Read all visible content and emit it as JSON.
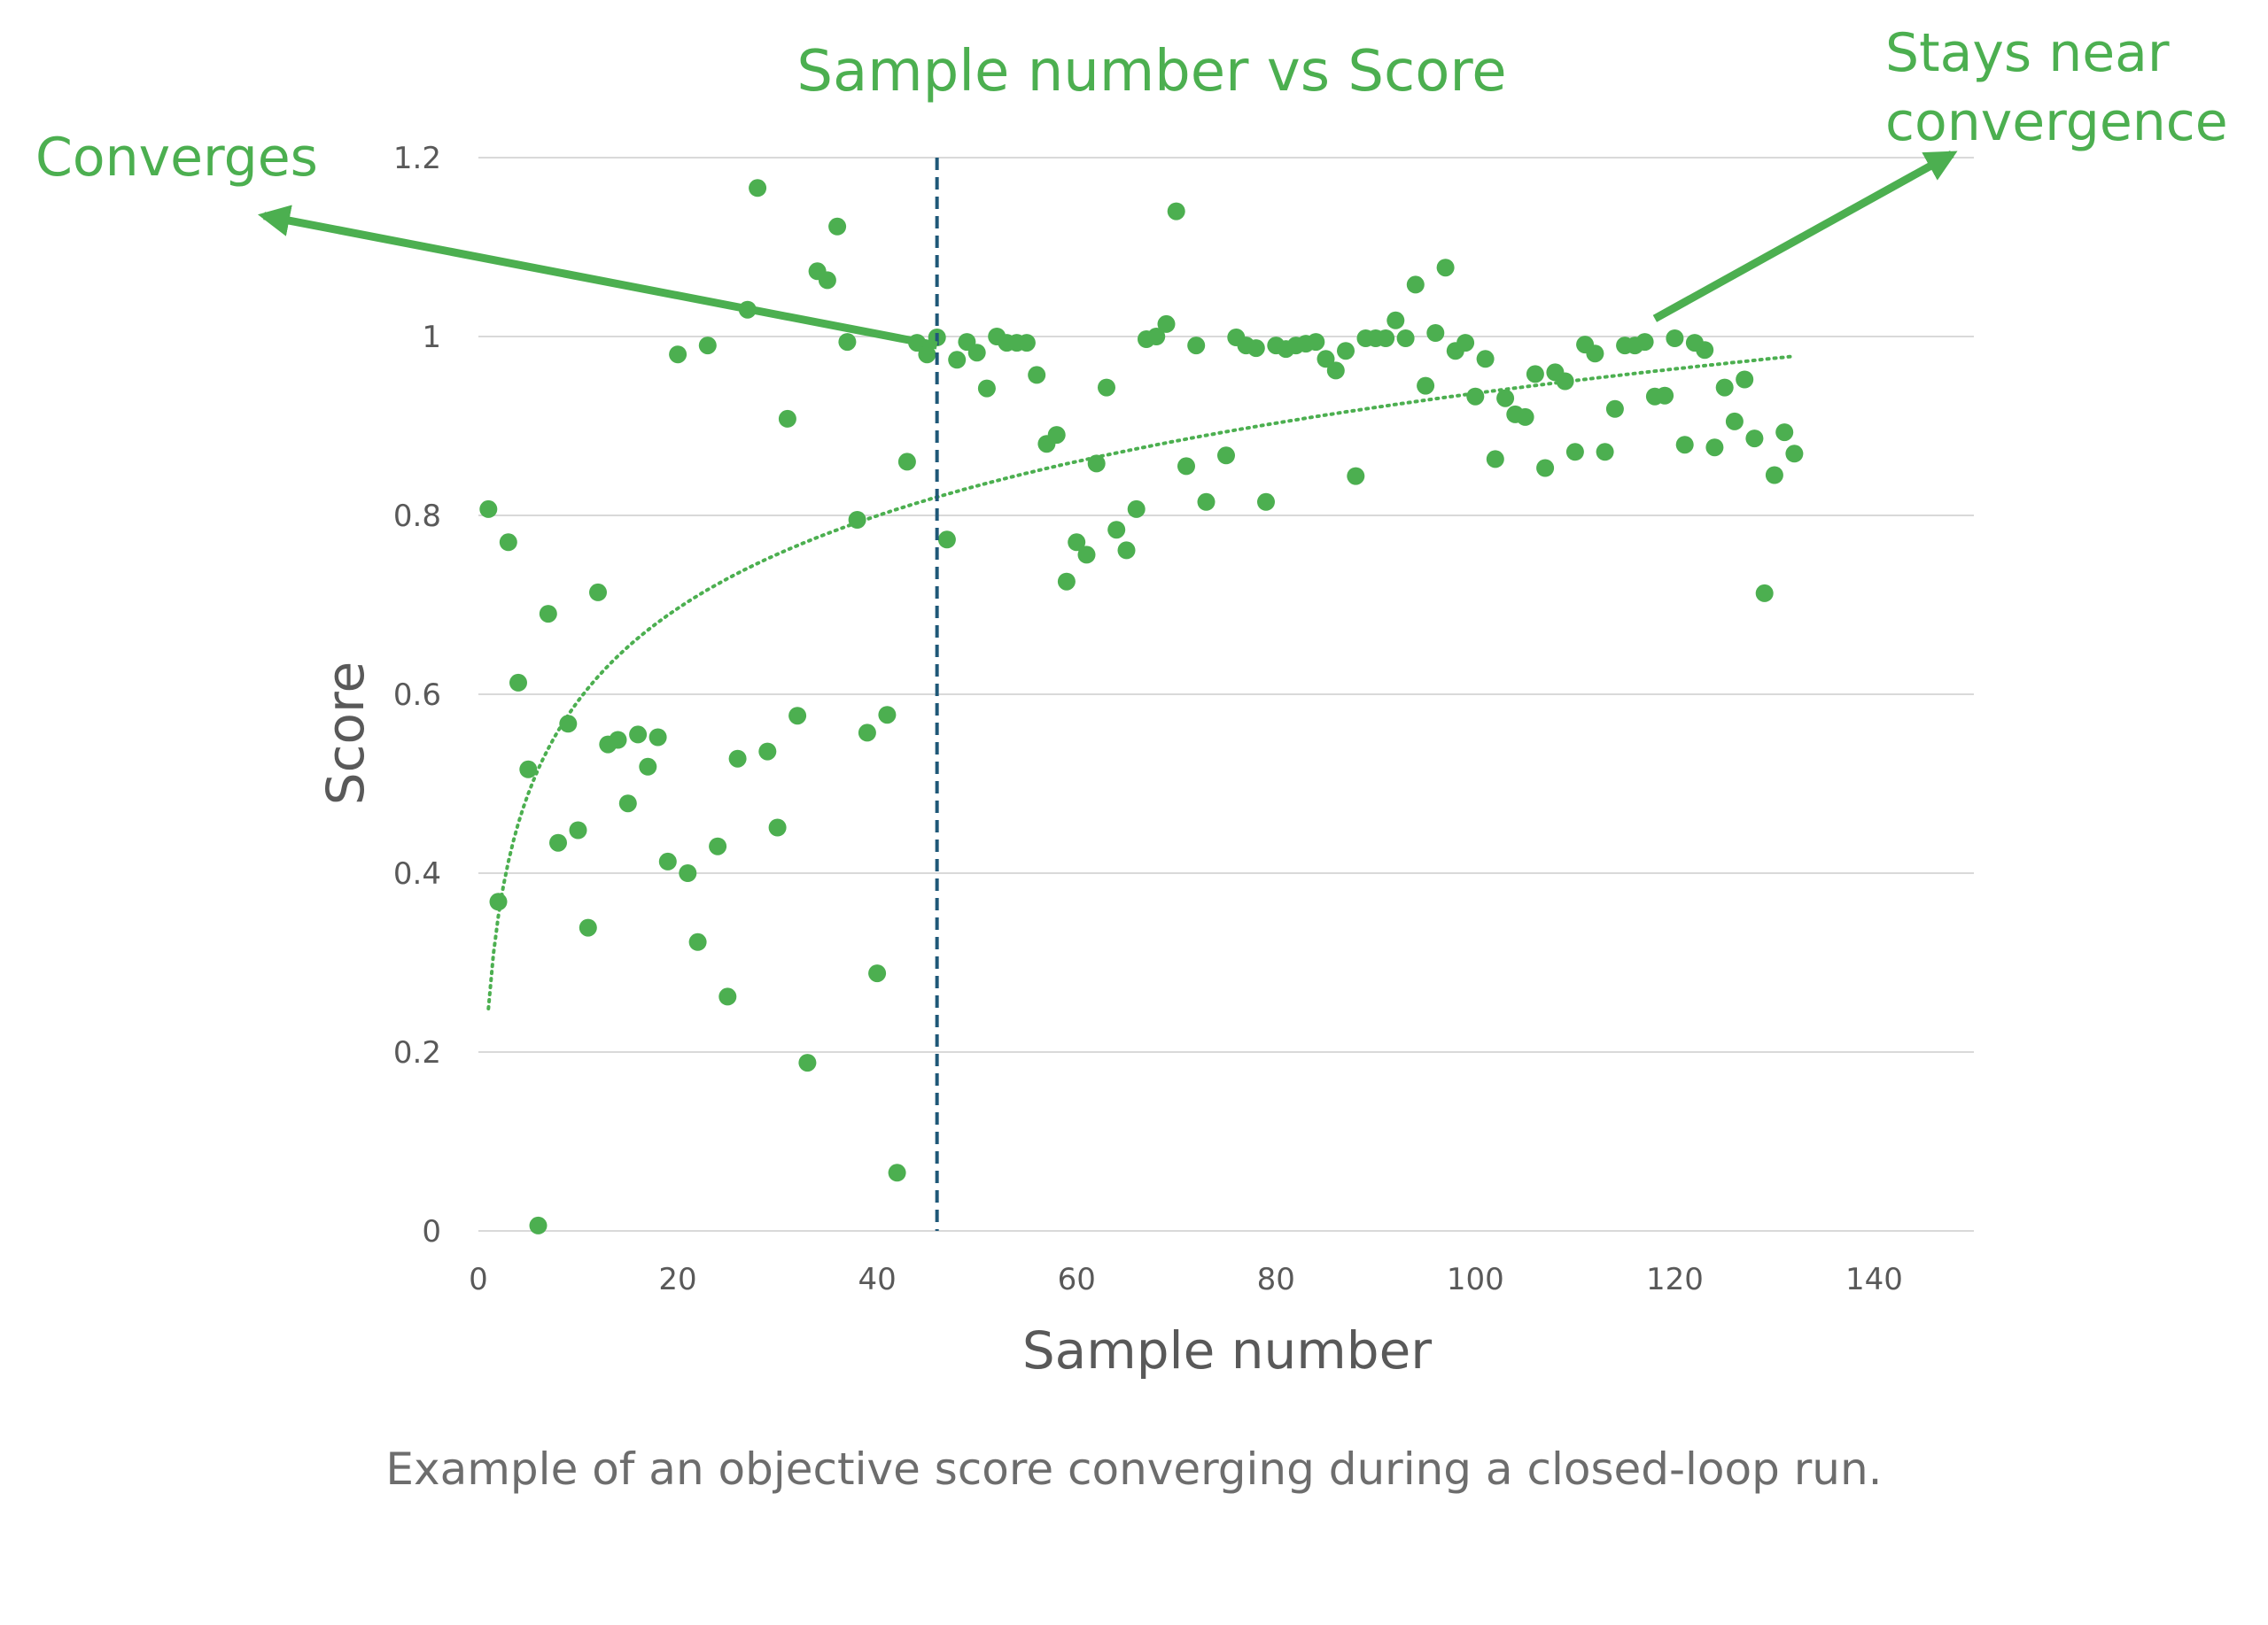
{
  "chart_data": {
    "type": "scatter",
    "title": "Sample number vs Score",
    "xlabel": "Sample number",
    "ylabel": "Score",
    "xlim": [
      0,
      150
    ],
    "ylim": [
      0,
      1.2
    ],
    "x_ticks": [
      0,
      20,
      40,
      60,
      80,
      100,
      120,
      140
    ],
    "y_ticks": [
      0,
      0.2,
      0.4,
      0.6,
      0.8,
      1,
      1.2
    ],
    "x_tick_labels": [
      "0",
      "20",
      "40",
      "60",
      "80",
      "100",
      "120",
      "140"
    ],
    "y_tick_labels": [
      "0",
      "0.2",
      "0.4",
      "0.6",
      "0.8",
      "1",
      "1.2"
    ],
    "grid": "horizontal",
    "series": [
      {
        "color": "#4caf50",
        "points": [
          [
            1,
            0.807
          ],
          [
            2,
            0.368
          ],
          [
            3,
            0.77
          ],
          [
            4,
            0.613
          ],
          [
            5,
            0.516
          ],
          [
            6,
            0.006
          ],
          [
            7,
            0.69
          ],
          [
            8,
            0.434
          ],
          [
            9,
            0.567
          ],
          [
            10,
            0.448
          ],
          [
            11,
            0.339
          ],
          [
            12,
            0.714
          ],
          [
            13,
            0.544
          ],
          [
            14,
            0.549
          ],
          [
            15,
            0.478
          ],
          [
            16,
            0.555
          ],
          [
            17,
            0.519
          ],
          [
            18,
            0.552
          ],
          [
            19,
            0.413
          ],
          [
            20,
            0.98
          ],
          [
            21,
            0.4
          ],
          [
            22,
            0.323
          ],
          [
            23,
            0.99
          ],
          [
            24,
            0.43
          ],
          [
            25,
            0.262
          ],
          [
            26,
            0.528
          ],
          [
            27,
            1.03
          ],
          [
            28,
            1.166
          ],
          [
            29,
            0.536
          ],
          [
            30,
            0.451
          ],
          [
            31,
            0.908
          ],
          [
            32,
            0.576
          ],
          [
            33,
            0.188
          ],
          [
            34,
            1.073
          ],
          [
            35,
            1.063
          ],
          [
            36,
            1.123
          ],
          [
            37,
            0.994
          ],
          [
            38,
            0.795
          ],
          [
            39,
            0.557
          ],
          [
            40,
            0.288
          ],
          [
            41,
            0.577
          ],
          [
            42,
            0.065
          ],
          [
            43,
            0.86
          ],
          [
            44,
            0.993
          ],
          [
            45,
            0.98
          ],
          [
            46,
            0.999
          ],
          [
            47,
            0.773
          ],
          [
            48,
            0.974
          ],
          [
            49,
            0.994
          ],
          [
            50,
            0.982
          ],
          [
            51,
            0.942
          ],
          [
            52,
            1.0
          ],
          [
            53,
            0.993
          ],
          [
            54,
            0.993
          ],
          [
            55,
            0.993
          ],
          [
            56,
            0.957
          ],
          [
            57,
            0.88
          ],
          [
            58,
            0.89
          ],
          [
            59,
            0.726
          ],
          [
            60,
            0.77
          ],
          [
            61,
            0.756
          ],
          [
            62,
            0.858
          ],
          [
            63,
            0.943
          ],
          [
            64,
            0.784
          ],
          [
            65,
            0.761
          ],
          [
            66,
            0.807
          ],
          [
            67,
            0.997
          ],
          [
            68,
            1.0
          ],
          [
            69,
            1.014
          ],
          [
            70,
            1.14
          ],
          [
            71,
            0.855
          ],
          [
            72,
            0.99
          ],
          [
            73,
            0.815
          ],
          [
            75,
            0.867
          ],
          [
            76,
            0.999
          ],
          [
            77,
            0.99
          ],
          [
            78,
            0.987
          ],
          [
            79,
            0.815
          ],
          [
            80,
            0.99
          ],
          [
            81,
            0.986
          ],
          [
            82,
            0.99
          ],
          [
            83,
            0.992
          ],
          [
            84,
            0.994
          ],
          [
            85,
            0.975
          ],
          [
            86,
            0.962
          ],
          [
            87,
            0.984
          ],
          [
            88,
            0.844
          ],
          [
            89,
            0.998
          ],
          [
            90,
            0.998
          ],
          [
            91,
            0.998
          ],
          [
            92,
            1.018
          ],
          [
            93,
            0.998
          ],
          [
            94,
            1.058
          ],
          [
            95,
            0.945
          ],
          [
            96,
            1.004
          ],
          [
            97,
            1.077
          ],
          [
            98,
            0.984
          ],
          [
            99,
            0.993
          ],
          [
            100,
            0.933
          ],
          [
            101,
            0.975
          ],
          [
            102,
            0.863
          ],
          [
            103,
            0.931
          ],
          [
            104,
            0.913
          ],
          [
            105,
            0.91
          ],
          [
            106,
            0.958
          ],
          [
            107,
            0.853
          ],
          [
            108,
            0.96
          ],
          [
            109,
            0.95
          ],
          [
            110,
            0.871
          ],
          [
            111,
            0.991
          ],
          [
            112,
            0.981
          ],
          [
            113,
            0.871
          ],
          [
            114,
            0.919
          ],
          [
            115,
            0.99
          ],
          [
            116,
            0.99
          ],
          [
            117,
            0.994
          ],
          [
            118,
            0.933
          ],
          [
            119,
            0.934
          ],
          [
            120,
            0.998
          ],
          [
            121,
            0.879
          ],
          [
            122,
            0.993
          ],
          [
            123,
            0.985
          ],
          [
            124,
            0.876
          ],
          [
            125,
            0.943
          ],
          [
            126,
            0.905
          ],
          [
            127,
            0.952
          ],
          [
            128,
            0.886
          ],
          [
            129,
            0.713
          ],
          [
            130,
            0.845
          ],
          [
            131,
            0.893
          ],
          [
            132,
            0.869
          ]
        ]
      }
    ],
    "trendline": {
      "type": "logarithmic",
      "style": "dotted",
      "color": "#4caf50",
      "x_range": [
        1,
        132
      ],
      "intercept": 0.2485,
      "slope": 0.1494
    },
    "vertical_line": {
      "x": 46,
      "style": "dashed",
      "color": "#1f5878"
    },
    "annotations": [
      {
        "text": "Converges",
        "arrow_from": [
          46,
          0.99
        ],
        "arrow_to": [
          -21.5,
          1.135
        ]
      },
      {
        "text_lines": [
          "Stays near",
          "convergence"
        ],
        "arrow_from": [
          118,
          1.02
        ],
        "arrow_to": [
          147.8,
          1.204
        ]
      }
    ]
  },
  "caption": "Example of an objective score converging during a closed-loop run.",
  "colors": {
    "accent": "#4caf50",
    "axis_text": "#595959",
    "grid": "#d9d9d9",
    "divider": "#1f5878",
    "caption": "#6d6d6d"
  }
}
